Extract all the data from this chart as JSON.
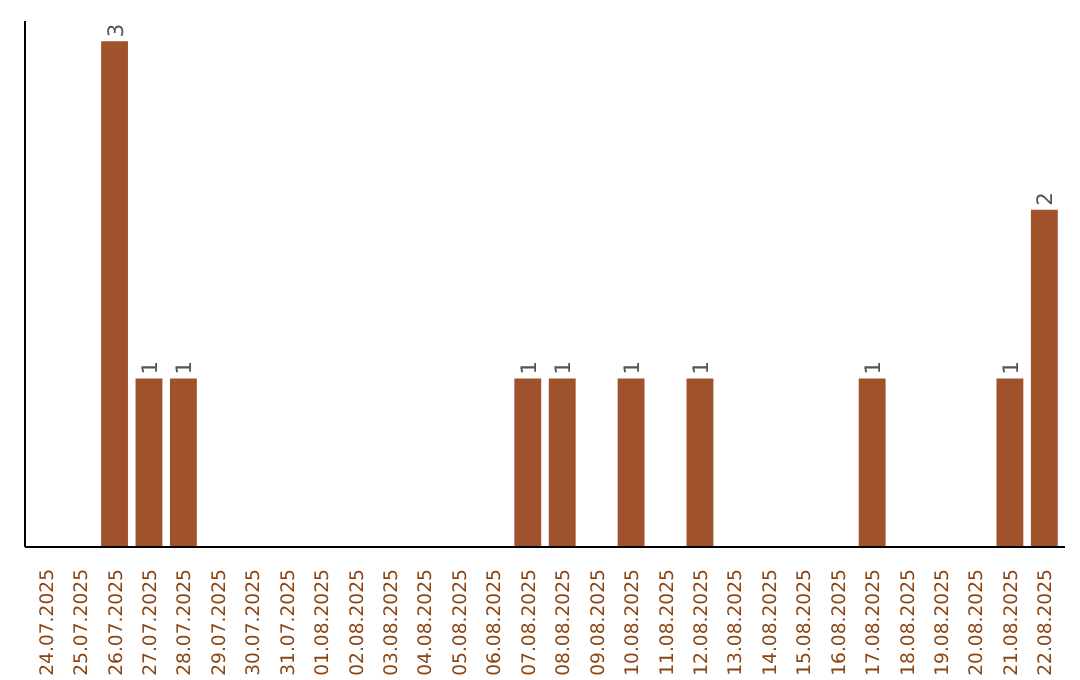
{
  "chart_data": {
    "type": "bar",
    "categories": [
      "24.07.2025",
      "25.07.2025",
      "26.07.2025",
      "27.07.2025",
      "28.07.2025",
      "29.07.2025",
      "30.07.2025",
      "31.07.2025",
      "01.08.2025",
      "02.08.2025",
      "03.08.2025",
      "04.08.2025",
      "05.08.2025",
      "06.08.2025",
      "07.08.2025",
      "08.08.2025",
      "09.08.2025",
      "10.08.2025",
      "11.08.2025",
      "12.08.2025",
      "13.08.2025",
      "14.08.2025",
      "15.08.2025",
      "16.08.2025",
      "17.08.2025",
      "18.08.2025",
      "19.08.2025",
      "20.08.2025",
      "21.08.2025",
      "22.08.2025"
    ],
    "values": [
      0,
      0,
      3,
      1,
      1,
      0,
      0,
      0,
      0,
      0,
      0,
      0,
      0,
      0,
      1,
      1,
      0,
      1,
      0,
      1,
      0,
      0,
      0,
      0,
      1,
      0,
      0,
      0,
      1,
      2
    ],
    "value_labels": [
      null,
      null,
      "3",
      "1",
      "1",
      null,
      null,
      null,
      null,
      null,
      null,
      null,
      null,
      null,
      "1",
      "1",
      null,
      "1",
      null,
      "1",
      null,
      null,
      null,
      null,
      "1",
      null,
      null,
      null,
      "1",
      "2"
    ],
    "color": "#a0522d",
    "tick_labels": "x",
    "grid": false
  }
}
